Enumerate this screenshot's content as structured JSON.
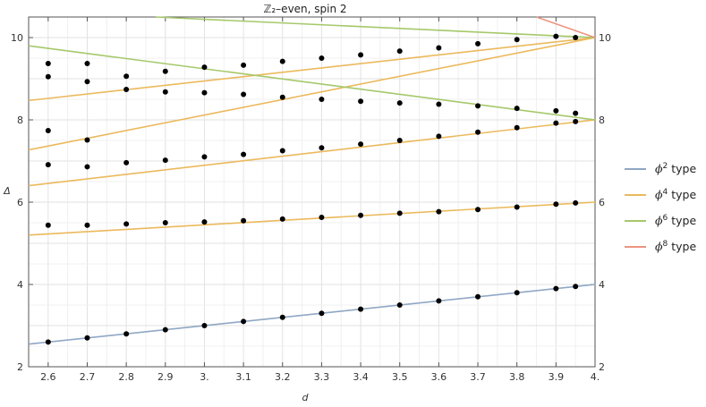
{
  "chart_data": {
    "type": "scatter",
    "title": "ℤ₂–even, spin 2",
    "xlabel": "d",
    "ylabel": "Δ",
    "xlim": [
      2.55,
      4.0
    ],
    "ylim": [
      2,
      10.5
    ],
    "x_ticks": [
      2.6,
      2.7,
      2.8,
      2.9,
      3.0,
      3.1,
      3.2,
      3.3,
      3.4,
      3.5,
      3.6,
      3.7,
      3.8,
      3.9,
      4.0
    ],
    "x_tick_labels": [
      "2.6",
      "2.7",
      "2.8",
      "2.9",
      "3.",
      "3.1",
      "3.2",
      "3.3",
      "3.4",
      "3.5",
      "3.6",
      "3.7",
      "3.8",
      "3.9",
      "4."
    ],
    "y_ticks": [
      2,
      4,
      6,
      8,
      10
    ],
    "y_tick_labels": [
      "2",
      "4",
      "6",
      "8",
      "10"
    ],
    "grid": true,
    "legend_position": "right",
    "legend": [
      {
        "base": "ϕ",
        "sup": "2",
        "text": " type",
        "color": "#8fa7c4"
      },
      {
        "base": "ϕ",
        "sup": "4",
        "text": " type",
        "color": "#ebb95c"
      },
      {
        "base": "ϕ",
        "sup": "6",
        "text": " type",
        "color": "#a5c86a"
      },
      {
        "base": "ϕ",
        "sup": "8",
        "text": " type",
        "color": "#ec9480"
      }
    ],
    "lines": [
      {
        "group": "ϕ2",
        "color": "#8fa7c4",
        "points": [
          [
            2.55,
            2.55
          ],
          [
            4.0,
            4.0
          ]
        ]
      },
      {
        "group": "ϕ4",
        "color": "#ebb95c",
        "points": [
          [
            2.55,
            5.2
          ],
          [
            4.0,
            6.0
          ]
        ]
      },
      {
        "group": "ϕ4",
        "color": "#ebb95c",
        "points": [
          [
            2.55,
            6.4
          ],
          [
            4.0,
            8.0
          ]
        ]
      },
      {
        "group": "ϕ4",
        "color": "#ebb95c",
        "points": [
          [
            2.55,
            7.27
          ],
          [
            4.0,
            10.0
          ]
        ]
      },
      {
        "group": "ϕ4",
        "color": "#ebb95c",
        "points": [
          [
            2.55,
            8.47
          ],
          [
            4.0,
            10.0
          ]
        ]
      },
      {
        "group": "ϕ6",
        "color": "#a5c86a",
        "points": [
          [
            2.55,
            9.8
          ],
          [
            4.0,
            8.0
          ]
        ]
      },
      {
        "group": "ϕ6",
        "color": "#a5c86a",
        "points": [
          [
            2.875,
            10.5
          ],
          [
            4.0,
            10.0
          ]
        ]
      },
      {
        "group": "ϕ8",
        "color": "#ec9480",
        "points": [
          [
            3.85,
            10.5
          ],
          [
            4.0,
            10.0
          ]
        ]
      }
    ],
    "points": [
      [
        2.6,
        2.6
      ],
      [
        2.7,
        2.7
      ],
      [
        2.8,
        2.8
      ],
      [
        2.9,
        2.9
      ],
      [
        3.0,
        3.0
      ],
      [
        3.1,
        3.1
      ],
      [
        3.2,
        3.2
      ],
      [
        3.3,
        3.3
      ],
      [
        3.4,
        3.4
      ],
      [
        3.5,
        3.5
      ],
      [
        3.6,
        3.6
      ],
      [
        3.7,
        3.7
      ],
      [
        3.8,
        3.8
      ],
      [
        3.9,
        3.9
      ],
      [
        3.95,
        3.95
      ],
      [
        2.6,
        5.44
      ],
      [
        2.7,
        5.44
      ],
      [
        2.8,
        5.47
      ],
      [
        2.9,
        5.5
      ],
      [
        3.0,
        5.52
      ],
      [
        3.1,
        5.55
      ],
      [
        3.2,
        5.59
      ],
      [
        3.3,
        5.63
      ],
      [
        3.4,
        5.68
      ],
      [
        3.5,
        5.73
      ],
      [
        3.6,
        5.77
      ],
      [
        3.7,
        5.82
      ],
      [
        3.8,
        5.88
      ],
      [
        3.9,
        5.95
      ],
      [
        3.95,
        5.98
      ],
      [
        2.6,
        6.91
      ],
      [
        2.7,
        6.86
      ],
      [
        2.8,
        6.96
      ],
      [
        2.9,
        7.02
      ],
      [
        3.0,
        7.1
      ],
      [
        3.1,
        7.16
      ],
      [
        3.2,
        7.25
      ],
      [
        3.3,
        7.32
      ],
      [
        3.4,
        7.41
      ],
      [
        3.5,
        7.5
      ],
      [
        3.6,
        7.6
      ],
      [
        3.7,
        7.7
      ],
      [
        3.8,
        7.81
      ],
      [
        3.9,
        7.92
      ],
      [
        3.95,
        7.96
      ],
      [
        2.6,
        7.74
      ],
      [
        2.7,
        7.51
      ],
      [
        2.8,
        8.74
      ],
      [
        2.9,
        8.68
      ],
      [
        3.0,
        8.66
      ],
      [
        3.1,
        8.62
      ],
      [
        3.2,
        8.55
      ],
      [
        3.3,
        8.5
      ],
      [
        3.4,
        8.45
      ],
      [
        3.5,
        8.41
      ],
      [
        3.6,
        8.38
      ],
      [
        3.7,
        8.34
      ],
      [
        3.8,
        8.28
      ],
      [
        3.9,
        8.22
      ],
      [
        3.95,
        8.16
      ],
      [
        2.6,
        9.05
      ],
      [
        2.7,
        8.93
      ],
      [
        2.8,
        9.06
      ],
      [
        2.9,
        9.18
      ],
      [
        3.0,
        9.28
      ],
      [
        3.1,
        9.33
      ],
      [
        3.2,
        9.42
      ],
      [
        3.3,
        9.5
      ],
      [
        3.4,
        9.58
      ],
      [
        3.5,
        9.67
      ],
      [
        3.6,
        9.75
      ],
      [
        3.7,
        9.85
      ],
      [
        3.8,
        9.95
      ],
      [
        3.9,
        10.03
      ],
      [
        3.95,
        10.0
      ],
      [
        2.6,
        9.37
      ],
      [
        2.7,
        9.37
      ]
    ]
  }
}
